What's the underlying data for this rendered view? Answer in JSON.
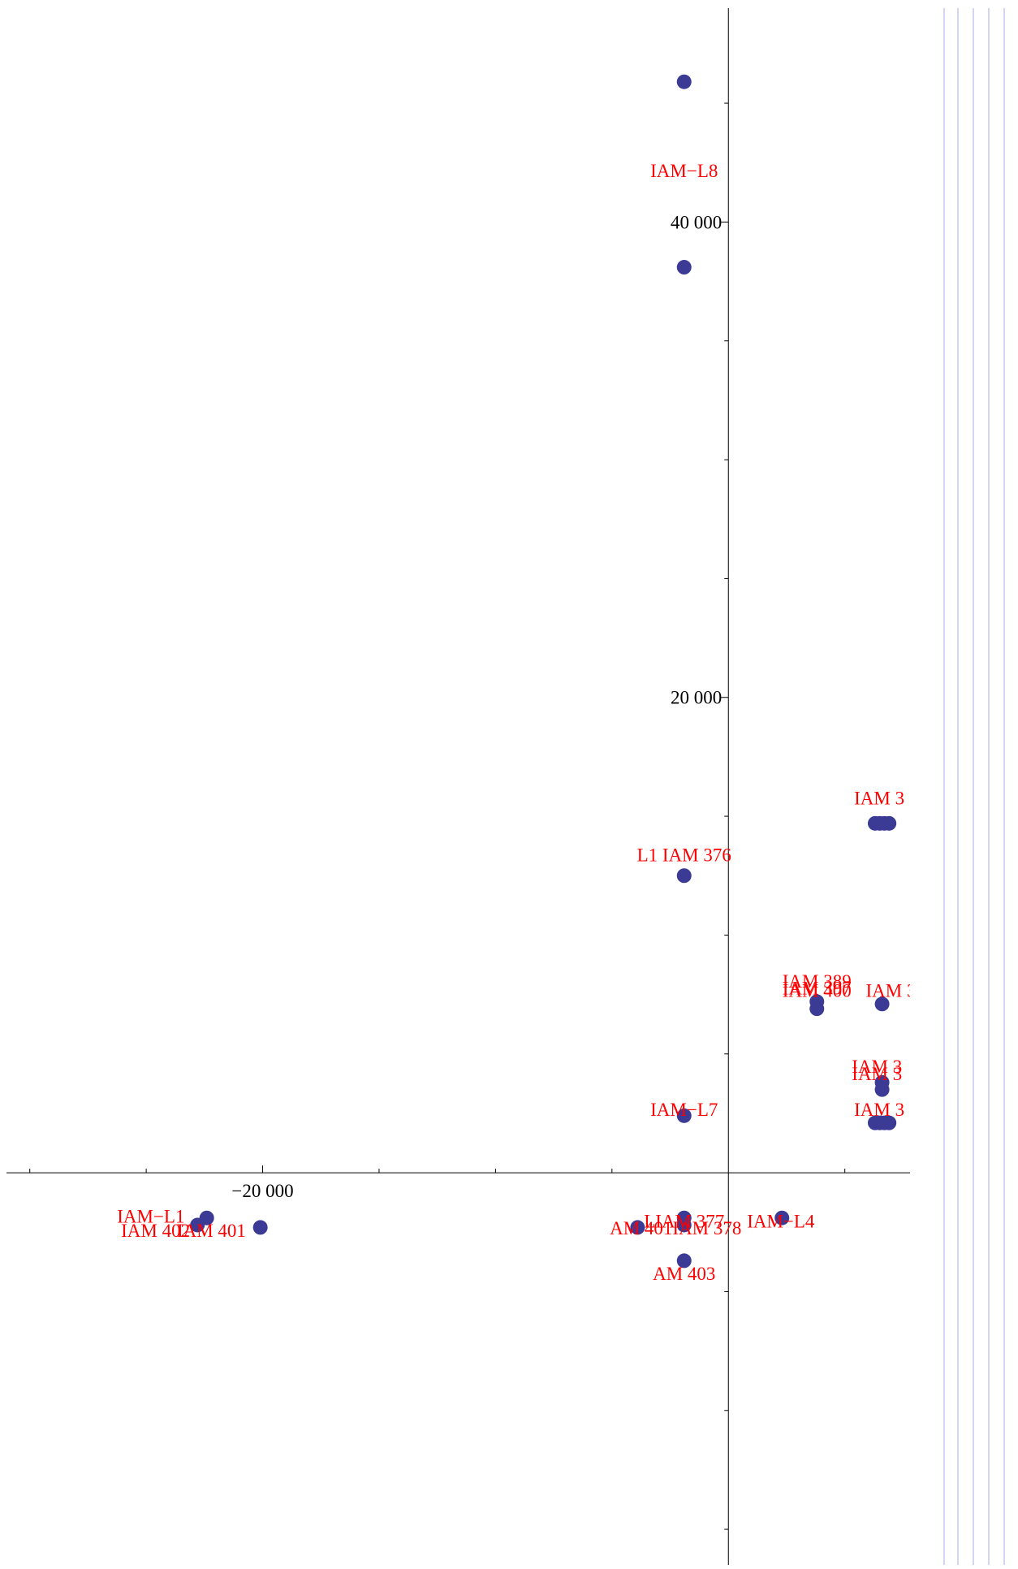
{
  "chart_data": {
    "type": "scatter",
    "title": "",
    "xlabel": "",
    "ylabel": "",
    "xlim": [
      -31000,
      7800
    ],
    "ylim": [
      -16500,
      49000
    ],
    "x_tick_labels": [
      {
        "value": -20000,
        "text": "−20 000"
      }
    ],
    "y_tick_labels": [
      {
        "value": 40000,
        "text": "40 000"
      },
      {
        "value": 20000,
        "text": "20 000"
      }
    ],
    "x_minor_ticks": [
      -30000,
      -25000,
      -20000,
      -15000,
      -10000,
      -5000,
      5000
    ],
    "y_minor_ticks": [
      -15000,
      -10000,
      -5000,
      5000,
      10000,
      15000,
      20000,
      25000,
      30000,
      35000,
      40000,
      45000
    ],
    "grid": false,
    "marker_color": "#3b3b96",
    "label_color": "#ff0000",
    "points": [
      {
        "x": -1900,
        "y": 45900,
        "label": ""
      },
      {
        "x": -1900,
        "y": 38100,
        "label": ""
      },
      {
        "x": -1900,
        "y": 12500,
        "label": ""
      },
      {
        "x": -1900,
        "y": 2400,
        "label": ""
      },
      {
        "x": -1900,
        "y": -1900,
        "label": ""
      },
      {
        "x": -1900,
        "y": -2200,
        "label": ""
      },
      {
        "x": -1900,
        "y": -3700,
        "label": ""
      },
      {
        "x": -3900,
        "y": -2300,
        "label": ""
      },
      {
        "x": 2300,
        "y": -1900,
        "label": ""
      },
      {
        "x": -20100,
        "y": -2300,
        "label": ""
      },
      {
        "x": -22400,
        "y": -1900,
        "label": ""
      },
      {
        "x": -22800,
        "y": -2200,
        "label": ""
      },
      {
        "x": 3800,
        "y": 7200,
        "label": ""
      },
      {
        "x": 3800,
        "y": 6900,
        "label": ""
      },
      {
        "x": 6600,
        "y": 7100,
        "label": ""
      },
      {
        "x": 6300,
        "y": 14700,
        "label": ""
      },
      {
        "x": 6500,
        "y": 14700,
        "label": ""
      },
      {
        "x": 6700,
        "y": 14700,
        "label": ""
      },
      {
        "x": 6900,
        "y": 14700,
        "label": ""
      },
      {
        "x": 6600,
        "y": 3800,
        "label": ""
      },
      {
        "x": 6600,
        "y": 3500,
        "label": ""
      },
      {
        "x": 6300,
        "y": 2100,
        "label": ""
      },
      {
        "x": 6500,
        "y": 2100,
        "label": ""
      },
      {
        "x": 6700,
        "y": 2100,
        "label": ""
      },
      {
        "x": 6900,
        "y": 2100,
        "label": ""
      }
    ],
    "labels": [
      {
        "x": -1900,
        "y": 41900,
        "text": "IAM−L8",
        "anchor": "middle"
      },
      {
        "x": -1900,
        "y": 13100,
        "text": "L1 IAM 376",
        "anchor": "middle"
      },
      {
        "x": -1900,
        "y": 2400,
        "text": "IAM−L7",
        "anchor": "middle"
      },
      {
        "x": -1900,
        "y": -2300,
        "text": "LIAM 377",
        "anchor": "middle"
      },
      {
        "x": -2400,
        "y": -2600,
        "text": "AM 401",
        "anchor": "end"
      },
      {
        "x": -2400,
        "y": -2600,
        "text": "IAM 378",
        "anchor": "start"
      },
      {
        "x": -1900,
        "y": -4500,
        "text": "AM 403",
        "anchor": "middle"
      },
      {
        "x": 800,
        "y": -2300,
        "text": "IAM−L4",
        "anchor": "start"
      },
      {
        "x": -24800,
        "y": -2100,
        "text": "IAM−L1",
        "anchor": "middle"
      },
      {
        "x": -24600,
        "y": -2700,
        "text": "IAM 402",
        "anchor": "middle"
      },
      {
        "x": -22200,
        "y": -2700,
        "text": "IAM 401",
        "anchor": "middle"
      },
      {
        "x": 3800,
        "y": 7800,
        "text": "IAM 389",
        "anchor": "middle"
      },
      {
        "x": 3800,
        "y": 7500,
        "text": "IAM 397",
        "anchor": "middle"
      },
      {
        "x": 3800,
        "y": 7400,
        "text": "IAM 400",
        "anchor": "middle"
      },
      {
        "x": 5900,
        "y": 7400,
        "text": "IAM 3",
        "anchor": "start"
      },
      {
        "x": 5400,
        "y": 15500,
        "text": "IAM 3",
        "anchor": "start"
      },
      {
        "x": 5300,
        "y": 4200,
        "text": "IAM 3",
        "anchor": "start"
      },
      {
        "x": 5300,
        "y": 3900,
        "text": "IAM 3",
        "anchor": "start"
      },
      {
        "x": 5400,
        "y": 2400,
        "text": "IAM 3",
        "anchor": "start"
      }
    ]
  }
}
